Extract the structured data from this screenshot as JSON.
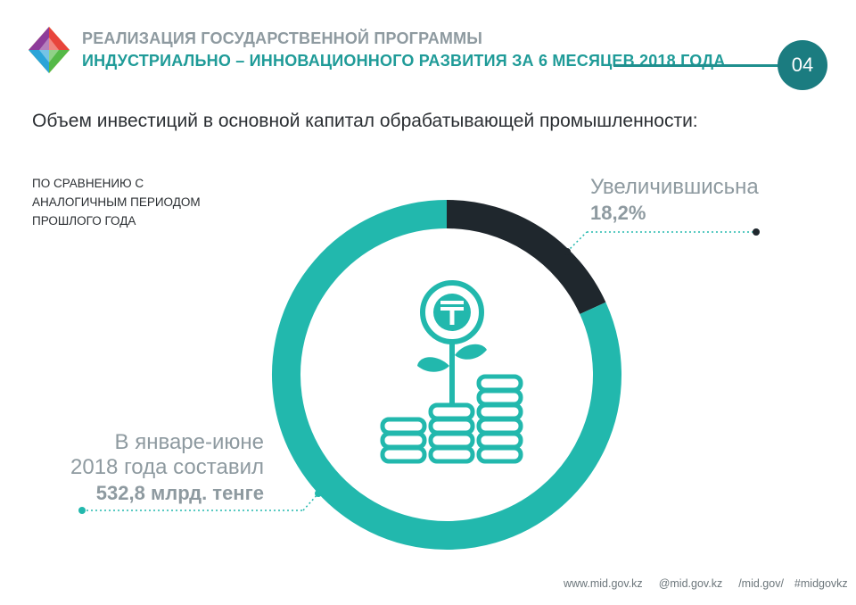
{
  "header": {
    "title_line1": "РЕАЛИЗАЦИЯ ГОСУДАРСТВЕННОЙ ПРОГРАММЫ",
    "title_line2": "ИНДУСТРИАЛЬНО – ИННОВАЦИОННОГО РАЗВИТИЯ ЗА 6 МЕСЯЦЕВ 2018 ГОДА",
    "page_number": "04"
  },
  "subtitle": "Объем инвестиций в основной капитал обрабатывающей промышленности:",
  "compare_note": [
    "ПО СРАВНЕНИЮ С",
    "АНАЛОГИЧНЫМ ПЕРИОДОМ",
    "ПРОШЛОГО ГОДА"
  ],
  "colors": {
    "teal": "#22b8ad",
    "dark": "#1f272d",
    "gray_text": "#8e9aa0",
    "header_teal": "#1f9b98",
    "badge": "#1b7c80"
  },
  "icons": [
    "tenge-coin-icon",
    "plant-leaves-icon",
    "coin-stacks-icon",
    "web-icon",
    "instagram-icon",
    "facebook-icon"
  ],
  "chart_data": {
    "type": "pie",
    "variant": "donut",
    "segments": [
      {
        "label": "Увеличившисьна",
        "value": 18.2,
        "display": "18,2%",
        "color": "#1f272d"
      },
      {
        "label": "",
        "value": 81.8,
        "color": "#22b8ad"
      }
    ],
    "annotations": {
      "increase_label": "Увеличившисьна",
      "increase_value": "18,2%",
      "total_line1": "В январе-июне",
      "total_line2": "2018 года составил",
      "total_value": "532,8 млрд. тенге"
    }
  },
  "footer": {
    "website": "www.mid.gov.kz",
    "instagram": "@mid.gov.kz",
    "facebook": "/mid.gov/",
    "hashtag": "#midgovkz"
  }
}
